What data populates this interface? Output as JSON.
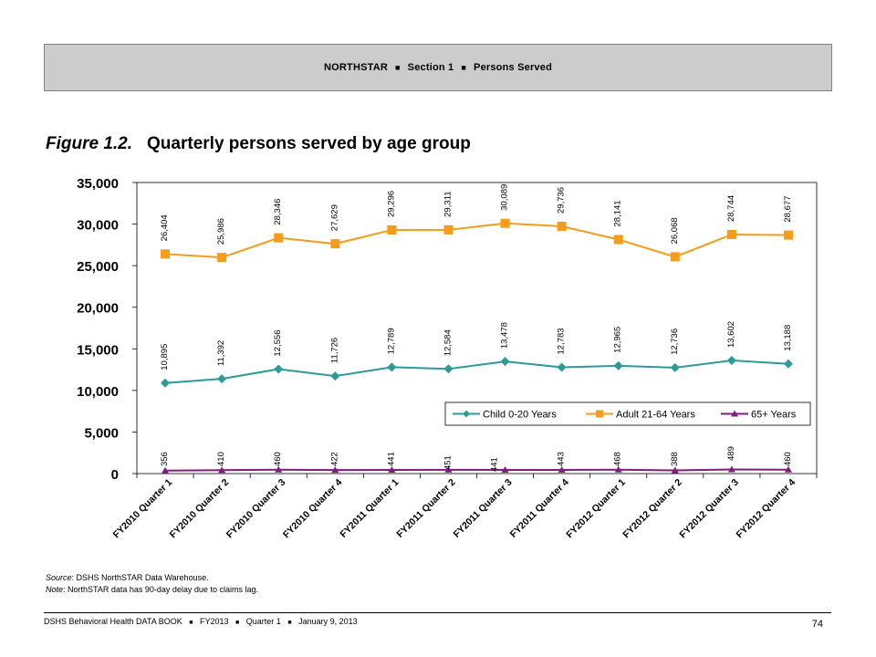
{
  "header": {
    "org": "NORTHSTAR",
    "section": "Section 1",
    "topic": "Persons Served",
    "separator": "■"
  },
  "figure": {
    "number": "Figure 1.2.",
    "title": "Quarterly persons served by age group"
  },
  "chart_data": {
    "type": "line",
    "categories": [
      "FY2010 Quarter 1",
      "FY2010 Quarter 2",
      "FY2010 Quarter 3",
      "FY2010 Quarter 4",
      "FY2011 Quarter 1",
      "FY2011 Quarter 2",
      "FY2011 Quarter 3",
      "FY2011 Quarter 4",
      "FY2012 Quarter 1",
      "FY2012 Quarter 2",
      "FY2012 Quarter 3",
      "FY2012 Quarter 4"
    ],
    "series": [
      {
        "name": "Child  0-20 Years",
        "color": "#2a9b96",
        "marker": "diamond",
        "values": [
          10895,
          11392,
          12556,
          11726,
          12789,
          12584,
          13478,
          12783,
          12965,
          12736,
          13602,
          13188
        ],
        "labels": [
          "10,895",
          "11,392",
          "12,556",
          "11,726",
          "12,789",
          "12,584",
          "13,478",
          "12,783",
          "12,965",
          "12,736",
          "13,602",
          "13,188"
        ]
      },
      {
        "name": "Adult  21-64 Years",
        "color": "#f59c1a",
        "marker": "square",
        "values": [
          26404,
          25986,
          28346,
          27629,
          29296,
          29311,
          30089,
          29736,
          28141,
          26068,
          28744,
          28677
        ],
        "labels": [
          "26,404",
          "25,986",
          "28,346",
          "27,629",
          "29,296",
          "29,311",
          "30,089",
          "29,736",
          "28,141",
          "26,068",
          "28,744",
          "28,677"
        ]
      },
      {
        "name": "65+ Years",
        "color": "#7b1f7a",
        "marker": "triangle",
        "values": [
          356,
          410,
          460,
          422,
          441,
          451,
          441,
          443,
          468,
          388,
          489,
          460
        ],
        "labels": [
          "356",
          "410",
          "460",
          "422",
          "441",
          "451",
          "441",
          "443",
          "468",
          "388",
          "489",
          "460"
        ]
      }
    ],
    "yticks": [
      "0",
      "5,000",
      "10,000",
      "15,000",
      "20,000",
      "25,000",
      "30,000",
      "35,000"
    ],
    "ylim": [
      0,
      35000
    ],
    "grid": false,
    "legend_position": "inside-right"
  },
  "notes": {
    "source_label": "Source",
    "source_text": ": DSHS NorthSTAR Data Warehouse.",
    "note_label": "Note",
    "note_text": ": NorthSTAR data has 90-day delay due to claims lag."
  },
  "footer": {
    "book": "DSHS Behavioral Health DATA BOOK",
    "fy": "FY2013",
    "quarter": "Quarter 1",
    "date": "January  9, 2013",
    "separator": "■",
    "page": "74"
  }
}
